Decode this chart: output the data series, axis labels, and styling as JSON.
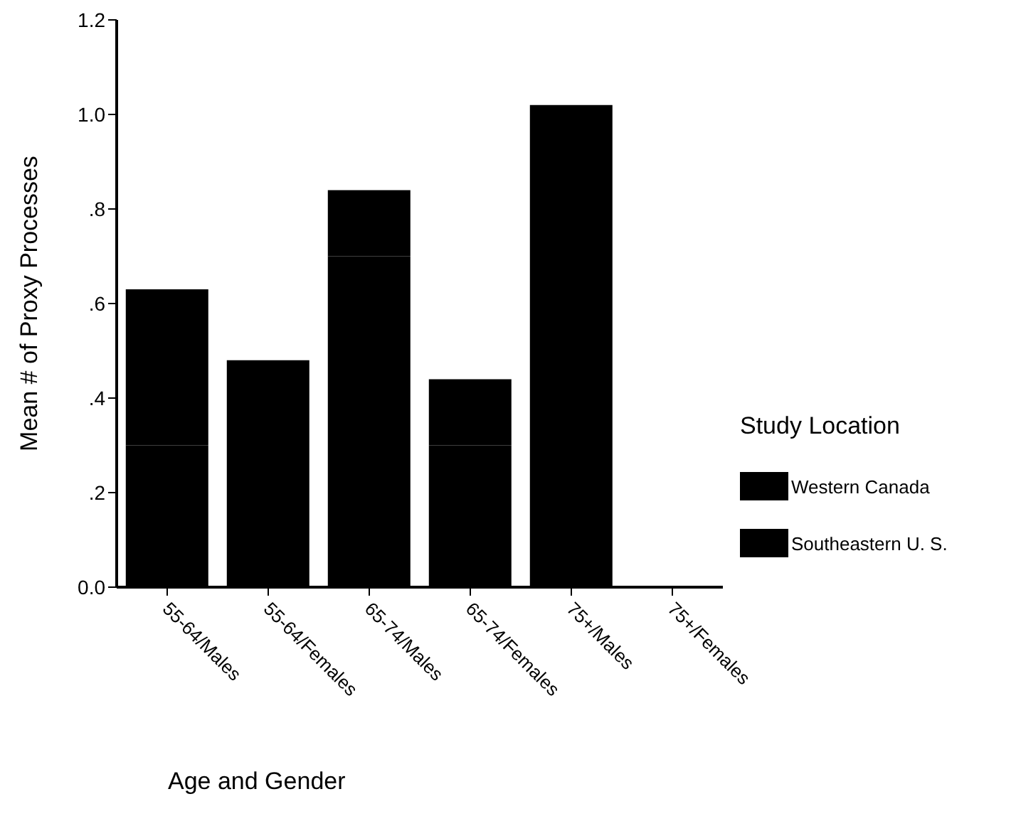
{
  "chart_data": {
    "type": "bar",
    "stacked": true,
    "xlabel": "Age and Gender",
    "ylabel": "Mean # of Proxy Processes",
    "legend_title": "Study Location",
    "categories": [
      "55-64/Males",
      "55-64/Females",
      "65-74/Males",
      "65-74/Females",
      "75+/Males",
      "75+/Females"
    ],
    "series": [
      {
        "name": "Western Canada",
        "color": "#000000",
        "values": [
          0.3,
          0.48,
          0.7,
          0.3,
          1.02,
          null
        ]
      },
      {
        "name": "Southeastern U. S.",
        "color": "#000000",
        "values": [
          0.33,
          null,
          0.14,
          0.14,
          null,
          null
        ]
      }
    ],
    "ylim": [
      0,
      1.2
    ],
    "yticks": [
      {
        "value": 0,
        "label": "0.0"
      },
      {
        "value": 0.2,
        "label": ".2"
      },
      {
        "value": 0.4,
        "label": ".4"
      },
      {
        "value": 0.6,
        "label": ".6"
      },
      {
        "value": 0.8,
        "label": ".8"
      },
      {
        "value": 1.0,
        "label": "1.0"
      },
      {
        "value": 1.2,
        "label": "1.2"
      }
    ],
    "grid": false,
    "legend": "right"
  }
}
